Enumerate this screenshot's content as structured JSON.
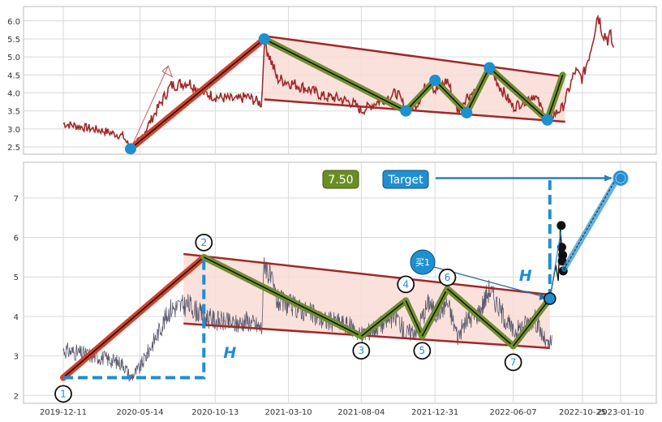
{
  "colors": {
    "price": "#a02828",
    "price_bottom": "#5a5a6e",
    "channel": "#a02828",
    "channel_fill": "#f9dcd6",
    "leg_green": "#6f8f2f",
    "leg_red": "#d2422a",
    "marker": "#1f8fd0",
    "target_box": "#1f8fd0",
    "value_box": "#6b8e23"
  },
  "chart_data": [
    {
      "type": "line",
      "panel": "top",
      "series": [
        {
          "values_source": "price",
          "x": [
            "2019-12-11",
            "2020-01-20",
            "2020-03-01",
            "2020-04-10",
            "2020-04-25",
            "2020-05-14",
            "2020-06-20",
            "2020-07-15",
            "2020-08-20",
            "2020-09-20",
            "2020-10-13",
            "2020-11-25",
            "2020-12-15",
            "2021-01-15",
            "2021-01-20",
            "2021-02-15",
            "2021-03-10",
            "2021-04-20",
            "2021-05-20",
            "2021-06-20",
            "2021-07-20",
            "2021-08-04",
            "2021-09-05",
            "2021-10-15",
            "2021-11-02",
            "2021-11-25",
            "2021-12-20",
            "2021-12-31",
            "2022-01-25",
            "2022-02-15",
            "2022-03-05",
            "2022-03-30",
            "2022-04-20",
            "2022-05-10",
            "2022-06-07",
            "2022-06-25",
            "2022-07-20",
            "2022-08-15",
            "2022-09-15",
            "2022-10-10",
            "2022-10-25",
            "2022-11-10",
            "2022-11-25",
            "2022-12-05",
            "2022-12-15",
            "2022-12-20",
            "2022-12-28"
          ],
          "y": [
            3.15,
            3.05,
            2.95,
            2.8,
            2.45,
            2.7,
            3.6,
            4.2,
            4.3,
            4.0,
            3.9,
            3.8,
            3.9,
            3.7,
            5.45,
            4.4,
            4.3,
            4.1,
            3.9,
            3.85,
            3.7,
            3.5,
            3.75,
            4.0,
            3.55,
            3.7,
            4.4,
            4.05,
            4.35,
            3.5,
            3.9,
            4.1,
            4.7,
            4.2,
            3.6,
            3.75,
            3.95,
            3.25,
            3.6,
            4.6,
            4.4,
            5.2,
            6.2,
            5.7,
            5.5,
            5.6,
            5.15
          ]
        }
      ],
      "ylim": [
        2.3,
        6.4
      ],
      "y_ticks": [
        "2.5",
        "3.0",
        "3.5",
        "4.0",
        "4.5",
        "5.0",
        "5.5",
        "6.0"
      ],
      "pattern_points": [
        {
          "x": "2020-04-25",
          "y": 2.45
        },
        {
          "x": "2021-01-20",
          "y": 5.5
        },
        {
          "x": "2021-11-02",
          "y": 3.5
        },
        {
          "x": "2021-12-31",
          "y": 4.35
        },
        {
          "x": "2022-03-05",
          "y": 3.45
        },
        {
          "x": "2022-04-20",
          "y": 4.7
        },
        {
          "x": "2022-08-15",
          "y": 3.25
        },
        {
          "x": "2022-09-15",
          "y": 4.5
        }
      ],
      "grid": true
    },
    {
      "type": "line",
      "panel": "bottom",
      "x_ticks": [
        "2019-12-11",
        "2020-05-14",
        "2020-10-13",
        "2021-03-10",
        "2021-08-04",
        "2021-12-31",
        "2022-06-07",
        "2022-10-25",
        "2023-01-10"
      ],
      "y_ticks": [
        "2",
        "3",
        "4",
        "5",
        "6",
        "7"
      ],
      "ylim": [
        1.8,
        7.9
      ],
      "pattern_points": [
        {
          "label": "1",
          "x": "2019-12-11",
          "y": 2.45
        },
        {
          "label": "2",
          "x": "2020-09-20",
          "y": 5.5
        },
        {
          "label": "3",
          "x": "2021-08-04",
          "y": 3.5
        },
        {
          "label": "4",
          "x": "2021-11-02",
          "y": 4.4
        },
        {
          "label": "5",
          "x": "2021-12-05",
          "y": 3.5
        },
        {
          "label": "6",
          "x": "2022-01-25",
          "y": 4.7
        },
        {
          "label": "7",
          "x": "2022-06-07",
          "y": 3.25
        },
        {
          "label": "",
          "x": "2022-08-20",
          "y": 4.45
        }
      ],
      "value_box": "7.50",
      "target_box": "Target",
      "buy_label": "买1",
      "h_label": "H",
      "grid": true
    }
  ]
}
